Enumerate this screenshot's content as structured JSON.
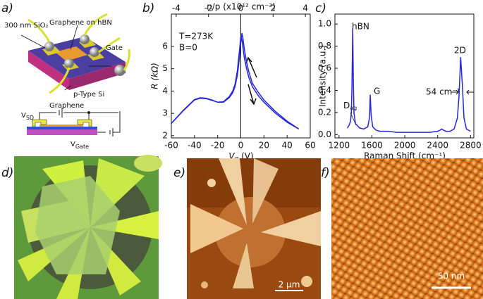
{
  "panels": [
    "a)",
    "b)",
    "c)",
    "d)",
    "e)",
    "f)"
  ],
  "panel_a": {
    "sio2": "300 nm SiO₂",
    "graphene_hbn": "Graphene on hBN",
    "gate": "Gate",
    "si": "p-Type Si",
    "vsd": {
      "main": "V",
      "sub": "SD"
    },
    "graphene": "Graphene",
    "vgate": {
      "main": "V",
      "sub": "Gate"
    }
  },
  "panel_e": {
    "scale_bar": "2 μm"
  },
  "panel_f": {
    "scale_bar": "50 nm"
  },
  "chart_data": [
    {
      "type": "line",
      "x_label": {
        "main": "V",
        "sub": "g",
        "tail": " (V)"
      },
      "y_label": "R (kΩ)",
      "x2_label": "n/p (x10¹² cm⁻²)",
      "annotations": [
        "T=273K",
        "B=0"
      ],
      "x": [
        -60,
        -50,
        -40,
        -35,
        -30,
        -25,
        -20,
        -15,
        -10,
        -7,
        -5,
        -3,
        -2,
        -1,
        0,
        1,
        2,
        3,
        5,
        7,
        10,
        15,
        20,
        30,
        40,
        50
      ],
      "series": [
        {
          "color": "#2626d9",
          "values": [
            2.55,
            3.1,
            3.6,
            3.68,
            3.66,
            3.58,
            3.5,
            3.52,
            3.75,
            4.0,
            4.3,
            4.9,
            5.4,
            5.9,
            6.45,
            6.3,
            5.9,
            5.5,
            5.0,
            4.6,
            4.2,
            3.8,
            3.5,
            3.0,
            2.6,
            2.3
          ]
        },
        {
          "color": "#2626d9",
          "values": [
            2.55,
            3.12,
            3.62,
            3.7,
            3.68,
            3.6,
            3.5,
            3.5,
            3.7,
            3.92,
            4.2,
            4.7,
            5.1,
            5.6,
            6.2,
            6.6,
            6.3,
            5.9,
            5.3,
            4.85,
            4.35,
            3.95,
            3.6,
            3.08,
            2.65,
            2.3
          ]
        }
      ],
      "xlim": [
        -60,
        60
      ],
      "xticks": [
        -60,
        -40,
        -20,
        0,
        20,
        40,
        60
      ],
      "ylim": [
        1.9,
        7.45
      ],
      "yticks": [
        2,
        3,
        4,
        5,
        6
      ],
      "x2lim": [
        -4.3,
        4.3
      ],
      "x2ticks": [
        -4,
        -2,
        0,
        2,
        4
      ]
    },
    {
      "type": "line",
      "x_label": "Raman Shift (cm⁻¹)",
      "y_label": "Intensity (a.u.)",
      "annotations": [
        "hBN",
        "G",
        "2D",
        {
          "main": "D",
          "sub": "ag"
        },
        "54 cm⁻¹"
      ],
      "x": [
        1300,
        1320,
        1340,
        1350,
        1358,
        1366,
        1374,
        1382,
        1400,
        1450,
        1500,
        1550,
        1570,
        1580,
        1590,
        1610,
        1650,
        1700,
        1800,
        1900,
        2000,
        2100,
        2200,
        2300,
        2400,
        2430,
        2450,
        2470,
        2500,
        2550,
        2600,
        2640,
        2660,
        2680,
        2700,
        2720,
        2750,
        2800
      ],
      "series": [
        {
          "color": "#2626d9",
          "values": [
            0.06,
            0.08,
            0.12,
            0.2,
            0.45,
            0.96,
            0.5,
            0.2,
            0.1,
            0.06,
            0.05,
            0.07,
            0.15,
            0.36,
            0.18,
            0.07,
            0.04,
            0.03,
            0.03,
            0.02,
            0.02,
            0.02,
            0.02,
            0.02,
            0.03,
            0.04,
            0.05,
            0.04,
            0.03,
            0.03,
            0.05,
            0.15,
            0.35,
            0.7,
            0.45,
            0.15,
            0.05,
            0.03
          ]
        }
      ],
      "xlim": [
        1150,
        2840
      ],
      "xticks": [
        1200,
        1600,
        2000,
        2400,
        2800
      ],
      "ylim": [
        -0.03,
        1.09
      ],
      "yticks": [
        {
          "value": 0,
          "label": "0.0"
        },
        0.2,
        0.4,
        0.6,
        0.8,
        {
          "value": 1,
          "label": "1.0"
        }
      ]
    }
  ]
}
